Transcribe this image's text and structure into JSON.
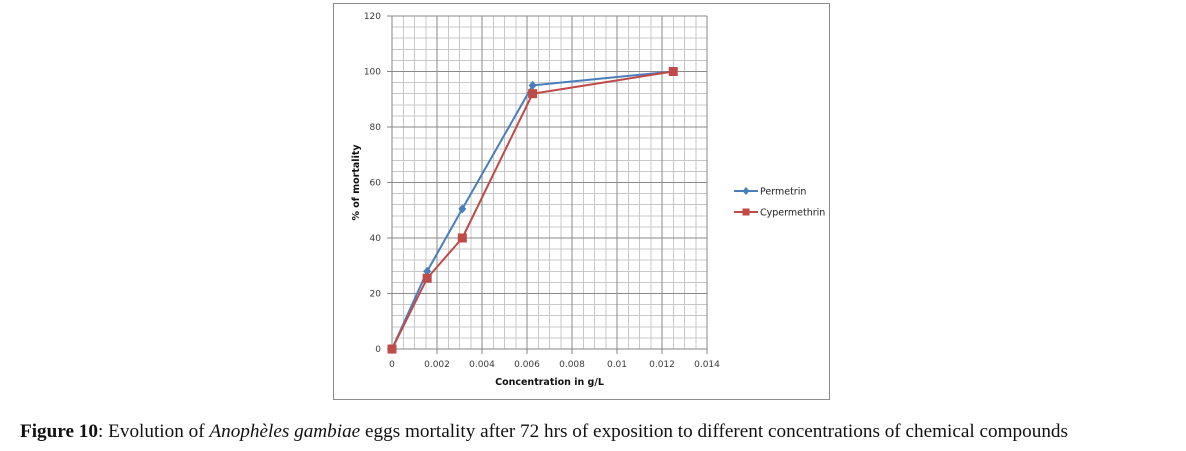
{
  "chart_data": {
    "type": "line",
    "title": "",
    "xlabel": "Concentration in g/L",
    "ylabel": "% of mortality",
    "xlim": [
      0,
      0.014
    ],
    "ylim": [
      0,
      120
    ],
    "x_ticks": [
      "0",
      "0.002",
      "0.004",
      "0.006",
      "0.008",
      "0.01",
      "0.012",
      "0.014"
    ],
    "y_ticks": [
      "0",
      "20",
      "40",
      "60",
      "80",
      "100",
      "120"
    ],
    "x_tick_values": [
      0,
      0.002,
      0.004,
      0.006,
      0.008,
      0.01,
      0.012,
      0.014
    ],
    "y_tick_values": [
      0,
      20,
      40,
      60,
      80,
      100,
      120
    ],
    "grid": true,
    "minor_grid": true,
    "legend_position": "right",
    "series": [
      {
        "name": "Permetrin",
        "color": "#4a7ebb",
        "marker": "diamond",
        "x": [
          0,
          0.0015625,
          0.003125,
          0.00625,
          0.0125
        ],
        "values": [
          0,
          28,
          50.5,
          95,
          100
        ]
      },
      {
        "name": "Cypermethrin",
        "color": "#be4b48",
        "marker": "square",
        "x": [
          0,
          0.0015625,
          0.003125,
          0.00625,
          0.0125
        ],
        "values": [
          0,
          25.5,
          40,
          92,
          100
        ]
      }
    ]
  },
  "caption": {
    "label": "Figure 10",
    "text_before": ": Evolution of ",
    "species": "Anophèles gambiae",
    "text_after": " eggs mortality after 72 hrs of exposition to different concentrations of chemical compounds"
  }
}
